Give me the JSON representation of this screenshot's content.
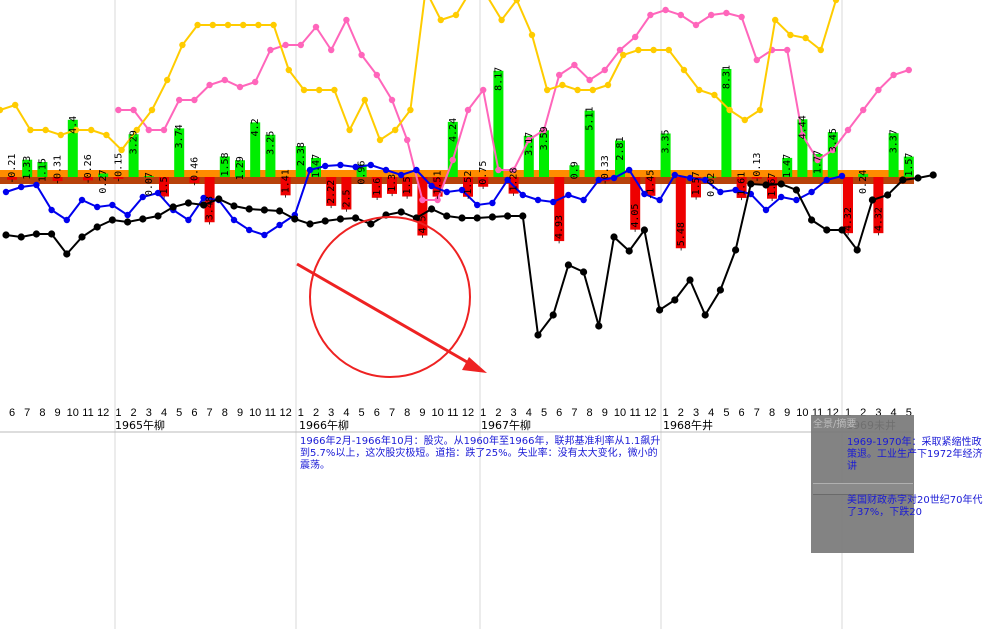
{
  "chart_data": {
    "type": "bar",
    "x_month_ticks": [
      "6",
      "7",
      "8",
      "9",
      "10",
      "11",
      "12",
      "1",
      "2",
      "3",
      "4",
      "5",
      "6",
      "7",
      "8",
      "9",
      "10",
      "11",
      "12",
      "1",
      "2",
      "3",
      "4",
      "5",
      "6",
      "7",
      "8",
      "9",
      "10",
      "11",
      "12",
      "1",
      "2",
      "3",
      "4",
      "5",
      "6",
      "7",
      "8",
      "9",
      "10",
      "11",
      "12",
      "1",
      "2",
      "3",
      "4",
      "5",
      "6",
      "7",
      "8",
      "9",
      "10",
      "11",
      "12",
      "1",
      "2",
      "3",
      "4",
      "5"
    ],
    "year_labels": [
      "1965午柳",
      "1966午柳",
      "1967午柳",
      "1968午井",
      "1969未井"
    ],
    "bar_series": {
      "values": [
        -0.21,
        1.33,
        1.15,
        -0.31,
        4.4,
        -0.26,
        0.27,
        -0.15,
        3.29,
        0.07,
        -1.5,
        3.74,
        -0.46,
        -3.48,
        1.58,
        1.29,
        4.2,
        3.25,
        -1.41,
        2.38,
        1.47,
        -2.22,
        -2.5,
        0.96,
        -1.6,
        -1.3,
        -1.5,
        -4.5,
        -1.51,
        4.24,
        -1.52,
        -0.75,
        8.17,
        -1.28,
        3.17,
        3.59,
        -4.93,
        0.9,
        5.11,
        -0.33,
        2.81,
        -4.05,
        -1.45,
        3.35,
        -5.48,
        -1.57,
        0.02,
        8.31,
        -1.61,
        -0.13,
        -1.67,
        1.47,
        4.44,
        1.77,
        3.45,
        -4.32,
        0.24,
        -4.32,
        3.37,
        1.57
      ]
    },
    "black_series": [
      195,
      193,
      196,
      196,
      176,
      193,
      203,
      210,
      208,
      211,
      214,
      223,
      227,
      225,
      231,
      224,
      221,
      220,
      219,
      211,
      206,
      209,
      211,
      212,
      206,
      215,
      218,
      212,
      221,
      214,
      212,
      212,
      213,
      214,
      214,
      95,
      115,
      165,
      158,
      104,
      193,
      179,
      200,
      120,
      130,
      150,
      115,
      140,
      180,
      246,
      245,
      246,
      240,
      210,
      200,
      200,
      180,
      230,
      235,
      250,
      252,
      255
    ],
    "blue_series": [
      238,
      243,
      245,
      220,
      210,
      230,
      223,
      225,
      215,
      233,
      237,
      220,
      210,
      232,
      230,
      210,
      200,
      195,
      205,
      215,
      260,
      264,
      265,
      263,
      265,
      260,
      255,
      260,
      244,
      238,
      240,
      225,
      227,
      250,
      235,
      230,
      228,
      235,
      230,
      250,
      252,
      260,
      236,
      230,
      255,
      252,
      250,
      238,
      240,
      236,
      220,
      233,
      230,
      238,
      250,
      254
    ],
    "pink_series": [
      320,
      320,
      300,
      300,
      330,
      330,
      345,
      350,
      343,
      348,
      380,
      385,
      385,
      403,
      380,
      410,
      375,
      355,
      330,
      290,
      230,
      230,
      270,
      320,
      340,
      260,
      260,
      290,
      300,
      355,
      365,
      350,
      360,
      380,
      393,
      415,
      420,
      415,
      405,
      415,
      417,
      413,
      370,
      380,
      380,
      295,
      270,
      280,
      300,
      320,
      340,
      355,
      360
    ],
    "yellow_series": [
      320,
      325,
      300,
      300,
      295,
      300,
      300,
      295,
      280,
      300,
      320,
      350,
      385,
      405,
      405,
      405,
      405,
      405,
      405,
      360,
      340,
      340,
      340,
      300,
      330,
      290,
      300,
      320,
      440,
      410,
      415,
      440,
      435,
      410,
      430,
      395,
      340,
      345,
      340,
      340,
      345,
      375,
      380,
      380,
      380,
      360,
      340,
      335,
      320,
      310,
      320,
      410,
      395,
      392,
      380,
      430
    ]
  },
  "notes": {
    "main": "1966年2月-1966年10月：股灾。从1960年至1966年，联邦基准利率从1.1飙升到5.7%以上，这次股灾极短。道指：跌了25%。失业率：没有太大变化，微小的震荡。",
    "overlay_title": "全景/摘要",
    "overlay_1": "1969-1970年：采取紧缩性政策退。工业生产下1972年经济讲",
    "overlay_2": "美国财政赤字对20世纪70年代了37%，下跌20"
  },
  "colors": {
    "bar_pos": "#00ee00",
    "bar_neg": "#ee0000",
    "band_orange": "#ff8c00",
    "band_brown": "#b8420a",
    "black": "#000000",
    "blue": "#0000ee",
    "pink": "#ff66bb",
    "yellow": "#ffcc00",
    "annotation": "#ee2222",
    "grid": "#d8d8d8"
  }
}
